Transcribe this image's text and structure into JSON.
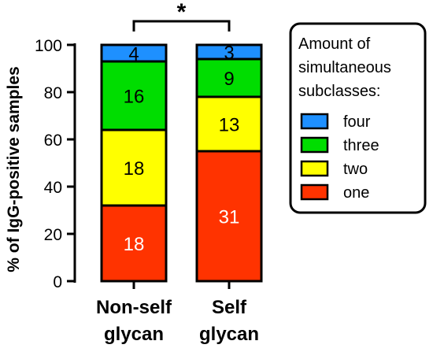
{
  "chart_data": {
    "type": "bar",
    "stacked": true,
    "ylabel": "% of IgG-positive samples",
    "ylim": [
      0,
      100
    ],
    "yticks": [
      0,
      20,
      40,
      60,
      80,
      100
    ],
    "categories": [
      {
        "line1": "Non-self",
        "line2": "glycan"
      },
      {
        "line1": "Self",
        "line2": "glycan"
      }
    ],
    "series": [
      {
        "name": "one",
        "color": "#ff3300",
        "label_color": "#ffffff",
        "percent": [
          32,
          55
        ],
        "labels": [
          "18",
          "31"
        ]
      },
      {
        "name": "two",
        "color": "#ffff00",
        "label_color": "#000000",
        "percent": [
          32,
          23
        ],
        "labels": [
          "18",
          "13"
        ]
      },
      {
        "name": "three",
        "color": "#00dd00",
        "label_color": "#000000",
        "percent": [
          29,
          16
        ],
        "labels": [
          "16",
          "9"
        ]
      },
      {
        "name": "four",
        "color": "#1e90ff",
        "label_color": "#000000",
        "percent": [
          7,
          6
        ],
        "labels": [
          "4",
          "3"
        ]
      }
    ],
    "significance": {
      "between": [
        0,
        1
      ],
      "label": "*"
    },
    "legend": {
      "title_lines": [
        "Amount of",
        "simultaneous",
        "subclasses:"
      ],
      "order": [
        "four",
        "three",
        "two",
        "one"
      ],
      "placement": "right"
    }
  }
}
